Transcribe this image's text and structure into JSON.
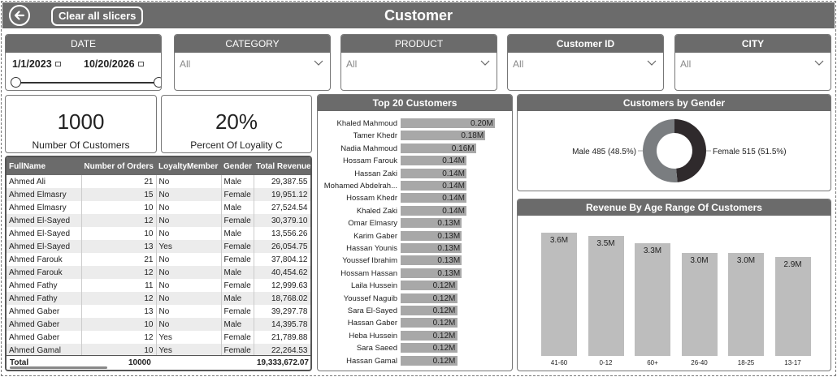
{
  "header": {
    "title": "Customer",
    "clear_label": "Clear all slicers"
  },
  "slicers": {
    "date": {
      "label": "DATE",
      "start": "1/1/2023",
      "end": "10/20/2026",
      "range_start_fraction": 0,
      "range_end_fraction": 1
    },
    "category": {
      "label": "CATEGORY",
      "value": "All"
    },
    "product": {
      "label": "PRODUCT",
      "value": "All"
    },
    "customer_id": {
      "label": "Customer ID",
      "value": "All"
    },
    "city": {
      "label": "CITY",
      "value": "All"
    }
  },
  "cards": {
    "customers": {
      "value": "1000",
      "label": "Number Of Customers"
    },
    "loyalty": {
      "value": "20%",
      "label": "Percent Of Loyality C"
    }
  },
  "table": {
    "columns": [
      "FullName",
      "Number of Orders",
      "LoyaltyMember",
      "Gender",
      "Total Revenue"
    ],
    "rows": [
      [
        "Ahmed Ali",
        "21",
        "No",
        "Male",
        "29,387.55"
      ],
      [
        "Ahmed Elmasry",
        "15",
        "No",
        "Female",
        "19,951.12"
      ],
      [
        "Ahmed Elmasry",
        "10",
        "No",
        "Male",
        "27,524.54"
      ],
      [
        "Ahmed El-Sayed",
        "12",
        "No",
        "Female",
        "30,379.10"
      ],
      [
        "Ahmed El-Sayed",
        "10",
        "No",
        "Male",
        "13,556.26"
      ],
      [
        "Ahmed El-Sayed",
        "13",
        "Yes",
        "Female",
        "26,054.75"
      ],
      [
        "Ahmed Farouk",
        "21",
        "No",
        "Female",
        "37,804.12"
      ],
      [
        "Ahmed Farouk",
        "12",
        "No",
        "Male",
        "40,454.62"
      ],
      [
        "Ahmed Fathy",
        "11",
        "No",
        "Female",
        "12,999.63"
      ],
      [
        "Ahmed Fathy",
        "12",
        "No",
        "Male",
        "18,768.02"
      ],
      [
        "Ahmed Gaber",
        "13",
        "No",
        "Female",
        "39,297.78"
      ],
      [
        "Ahmed Gaber",
        "10",
        "No",
        "Male",
        "14,395.78"
      ],
      [
        "Ahmed Gaber",
        "12",
        "Yes",
        "Female",
        "21,789.88"
      ],
      [
        "Ahmed Gamal",
        "10",
        "Yes",
        "Female",
        "22,264.53"
      ]
    ],
    "total_label": "Total",
    "total_orders": "10000",
    "total_revenue": "19,333,672.07"
  },
  "top_customers": {
    "title": "Top 20 Customers",
    "chart_data": {
      "type": "bar",
      "orientation": "horizontal",
      "categories": [
        "Khaled Mahmoud",
        "Tamer Khedr",
        "Nadia Mahmoud",
        "Hossam Farouk",
        "Hassan Zaki",
        "Mohamed Abdelrah...",
        "Hossam Khedr",
        "Khaled Zaki",
        "Omar Elmasry",
        "Karim Gaber",
        "Hassan Younis",
        "Youssef Ibrahim",
        "Hossam Hassan",
        "Laila Hussein",
        "Youssef Naguib",
        "Sara El-Sayed",
        "Hassan Gaber",
        "Heba Hussein",
        "Sara Saeed",
        "Hassan Gamal"
      ],
      "values": [
        0.2,
        0.18,
        0.16,
        0.14,
        0.14,
        0.14,
        0.14,
        0.14,
        0.13,
        0.13,
        0.13,
        0.13,
        0.13,
        0.12,
        0.12,
        0.12,
        0.12,
        0.12,
        0.12,
        0.12
      ],
      "labels": [
        "0.20M",
        "0.18M",
        "0.16M",
        "0.14M",
        "0.14M",
        "0.14M",
        "0.14M",
        "0.14M",
        "0.13M",
        "0.13M",
        "0.13M",
        "0.13M",
        "0.13M",
        "0.12M",
        "0.12M",
        "0.12M",
        "0.12M",
        "0.12M",
        "0.12M",
        "0.12M"
      ],
      "xlim": [
        0,
        0.2
      ]
    }
  },
  "gender": {
    "title": "Customers by Gender",
    "chart_data": {
      "type": "pie",
      "donut": true,
      "slices": [
        {
          "name": "Male",
          "value": 485,
          "label": "Male 485 (48.5%)",
          "color": "#2f2a2c"
        },
        {
          "name": "Female",
          "value": 515,
          "label": "Female 515 (51.5%)",
          "color": "#7a7d80"
        }
      ]
    }
  },
  "age_revenue": {
    "title": "Revenue By Age Range Of Customers",
    "chart_data": {
      "type": "bar",
      "categories": [
        "41-60",
        "0-12",
        "60+",
        "26-40",
        "18-25",
        "13-17"
      ],
      "values": [
        3.6,
        3.5,
        3.3,
        3.0,
        3.0,
        2.9
      ],
      "labels": [
        "3.6M",
        "3.5M",
        "3.3M",
        "3.0M",
        "3.0M",
        "2.9M"
      ],
      "ylim": [
        0,
        3.6
      ]
    }
  },
  "colors": {
    "header_bg": "#6b6b6b",
    "bar": "#a8a8a8",
    "column": "#bdbdbd"
  },
  "icons": {
    "back": "back-arrow-icon",
    "chevron": "chevron-down-icon",
    "calendar": "calendar-icon"
  }
}
